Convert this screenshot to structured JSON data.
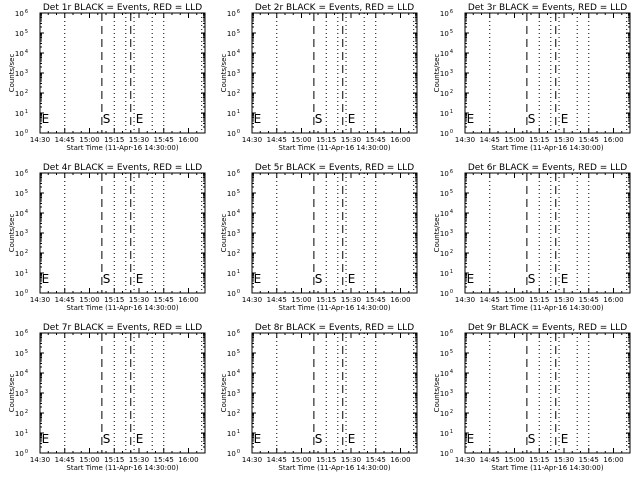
{
  "chart_data": [
    {
      "type": "line",
      "title": "Det 1r BLACK = Events, RED = LLD",
      "xlabel": "Start Time (11-Apr-16 14:30:00)",
      "ylabel": "Counts/sec",
      "x_ticks": [
        "14:30",
        "14:45",
        "15:00",
        "15:15",
        "15:30",
        "15:45",
        "16:00"
      ],
      "x_range_minutes": [
        0,
        100
      ],
      "y_scale": "log",
      "y_exp_ticks": [
        "0",
        "1",
        "2",
        "3",
        "4",
        "5",
        "6"
      ],
      "dotted_lines_min": [
        15,
        45,
        52,
        57,
        68,
        75,
        98
      ],
      "dashed_lines_min": [
        37.5,
        55
      ],
      "markers": [
        {
          "text": "E",
          "x_min": 1,
          "y": 1
        },
        {
          "text": "S",
          "x_min": 38,
          "y": 1
        },
        {
          "text": "E",
          "x_min": 58,
          "y": 1
        }
      ],
      "series": []
    },
    {
      "type": "line",
      "title": "Det 2r BLACK = Events, RED = LLD",
      "xlabel": "Start Time (11-Apr-16 14:30:00)",
      "ylabel": "Counts/sec",
      "x_ticks": [
        "14:30",
        "14:45",
        "15:00",
        "15:15",
        "15:30",
        "15:45",
        "16:00"
      ],
      "x_range_minutes": [
        0,
        100
      ],
      "y_scale": "log",
      "y_exp_ticks": [
        "0",
        "1",
        "2",
        "3",
        "4",
        "5",
        "6"
      ],
      "dotted_lines_min": [
        15,
        45,
        52,
        57,
        68,
        75,
        98
      ],
      "dashed_lines_min": [
        37.5,
        55
      ],
      "markers": [
        {
          "text": "E",
          "x_min": 1,
          "y": 1
        },
        {
          "text": "S",
          "x_min": 38,
          "y": 1
        },
        {
          "text": "E",
          "x_min": 58,
          "y": 1
        }
      ],
      "series": []
    },
    {
      "type": "line",
      "title": "Det 3r BLACK = Events, RED = LLD",
      "xlabel": "Start Time (11-Apr-16 14:30:00)",
      "ylabel": "Counts/sec",
      "x_ticks": [
        "14:30",
        "14:45",
        "15:00",
        "15:15",
        "15:30",
        "15:45",
        "16:00"
      ],
      "x_range_minutes": [
        0,
        100
      ],
      "y_scale": "log",
      "y_exp_ticks": [
        "0",
        "1",
        "2",
        "3",
        "4",
        "5",
        "6"
      ],
      "dotted_lines_min": [
        15,
        45,
        52,
        57,
        68,
        75,
        98
      ],
      "dashed_lines_min": [
        37.5,
        55
      ],
      "markers": [
        {
          "text": "E",
          "x_min": 1,
          "y": 1
        },
        {
          "text": "S",
          "x_min": 38,
          "y": 1
        },
        {
          "text": "E",
          "x_min": 58,
          "y": 1
        }
      ],
      "series": []
    },
    {
      "type": "line",
      "title": "Det 4r BLACK = Events, RED = LLD",
      "xlabel": "Start Time (11-Apr-16 14:30:00)",
      "ylabel": "Counts/sec",
      "x_ticks": [
        "14:30",
        "14:45",
        "15:00",
        "15:15",
        "15:30",
        "15:45",
        "16:00"
      ],
      "x_range_minutes": [
        0,
        100
      ],
      "y_scale": "log",
      "y_exp_ticks": [
        "0",
        "1",
        "2",
        "3",
        "4",
        "5",
        "6"
      ],
      "dotted_lines_min": [
        15,
        45,
        52,
        57,
        68,
        75,
        98
      ],
      "dashed_lines_min": [
        37.5,
        55
      ],
      "markers": [
        {
          "text": "E",
          "x_min": 1,
          "y": 1
        },
        {
          "text": "S",
          "x_min": 38,
          "y": 1
        },
        {
          "text": "E",
          "x_min": 58,
          "y": 1
        }
      ],
      "series": []
    },
    {
      "type": "line",
      "title": "Det 5r BLACK = Events, RED = LLD",
      "xlabel": "Start Time (11-Apr-16 14:30:00)",
      "ylabel": "Counts/sec",
      "x_ticks": [
        "14:30",
        "14:45",
        "15:00",
        "15:15",
        "15:30",
        "15:45",
        "16:00"
      ],
      "x_range_minutes": [
        0,
        100
      ],
      "y_scale": "log",
      "y_exp_ticks": [
        "0",
        "1",
        "2",
        "3",
        "4",
        "5",
        "6"
      ],
      "dotted_lines_min": [
        15,
        45,
        52,
        57,
        68,
        75,
        98
      ],
      "dashed_lines_min": [
        37.5,
        55
      ],
      "markers": [
        {
          "text": "E",
          "x_min": 1,
          "y": 1
        },
        {
          "text": "S",
          "x_min": 38,
          "y": 1
        },
        {
          "text": "E",
          "x_min": 58,
          "y": 1
        }
      ],
      "series": []
    },
    {
      "type": "line",
      "title": "Det 6r BLACK = Events, RED = LLD",
      "xlabel": "Start Time (11-Apr-16 14:30:00)",
      "ylabel": "Counts/sec",
      "x_ticks": [
        "14:30",
        "14:45",
        "15:00",
        "15:15",
        "15:30",
        "15:45",
        "16:00"
      ],
      "x_range_minutes": [
        0,
        100
      ],
      "y_scale": "log",
      "y_exp_ticks": [
        "0",
        "1",
        "2",
        "3",
        "4",
        "5",
        "6"
      ],
      "dotted_lines_min": [
        15,
        45,
        52,
        57,
        68,
        75,
        98
      ],
      "dashed_lines_min": [
        37.5,
        55
      ],
      "markers": [
        {
          "text": "E",
          "x_min": 1,
          "y": 1
        },
        {
          "text": "S",
          "x_min": 38,
          "y": 1
        },
        {
          "text": "E",
          "x_min": 58,
          "y": 1
        }
      ],
      "series": []
    },
    {
      "type": "line",
      "title": "Det 7r BLACK = Events, RED = LLD",
      "xlabel": "Start Time (11-Apr-16 14:30:00)",
      "ylabel": "Counts/sec",
      "x_ticks": [
        "14:30",
        "14:45",
        "15:00",
        "15:15",
        "15:30",
        "15:45",
        "16:00"
      ],
      "x_range_minutes": [
        0,
        100
      ],
      "y_scale": "log",
      "y_exp_ticks": [
        "0",
        "1",
        "2",
        "3",
        "4",
        "5",
        "6"
      ],
      "dotted_lines_min": [
        15,
        45,
        52,
        57,
        68,
        75,
        98
      ],
      "dashed_lines_min": [
        37.5,
        55
      ],
      "markers": [
        {
          "text": "E",
          "x_min": 1,
          "y": 1
        },
        {
          "text": "S",
          "x_min": 38,
          "y": 1
        },
        {
          "text": "E",
          "x_min": 58,
          "y": 1
        }
      ],
      "series": []
    },
    {
      "type": "line",
      "title": "Det 8r BLACK = Events, RED = LLD",
      "xlabel": "Start Time (11-Apr-16 14:30:00)",
      "ylabel": "Counts/sec",
      "x_ticks": [
        "14:30",
        "14:45",
        "15:00",
        "15:15",
        "15:30",
        "15:45",
        "16:00"
      ],
      "x_range_minutes": [
        0,
        100
      ],
      "y_scale": "log",
      "y_exp_ticks": [
        "0",
        "1",
        "2",
        "3",
        "4",
        "5",
        "6"
      ],
      "dotted_lines_min": [
        15,
        45,
        52,
        57,
        68,
        75,
        98
      ],
      "dashed_lines_min": [
        37.5,
        55
      ],
      "markers": [
        {
          "text": "E",
          "x_min": 1,
          "y": 1
        },
        {
          "text": "S",
          "x_min": 38,
          "y": 1
        },
        {
          "text": "E",
          "x_min": 58,
          "y": 1
        }
      ],
      "series": []
    },
    {
      "type": "line",
      "title": "Det 9r BLACK = Events, RED = LLD",
      "xlabel": "Start Time (11-Apr-16 14:30:00)",
      "ylabel": "Counts/sec",
      "x_ticks": [
        "14:30",
        "14:45",
        "15:00",
        "15:15",
        "15:30",
        "15:45",
        "16:00"
      ],
      "x_range_minutes": [
        0,
        100
      ],
      "y_scale": "log",
      "y_exp_ticks": [
        "0",
        "1",
        "2",
        "3",
        "4",
        "5",
        "6"
      ],
      "dotted_lines_min": [
        15,
        45,
        52,
        57,
        68,
        75,
        98
      ],
      "dashed_lines_min": [
        37.5,
        55
      ],
      "markers": [
        {
          "text": "E",
          "x_min": 1,
          "y": 1
        },
        {
          "text": "S",
          "x_min": 38,
          "y": 1
        },
        {
          "text": "E",
          "x_min": 58,
          "y": 1
        }
      ],
      "series": []
    }
  ]
}
